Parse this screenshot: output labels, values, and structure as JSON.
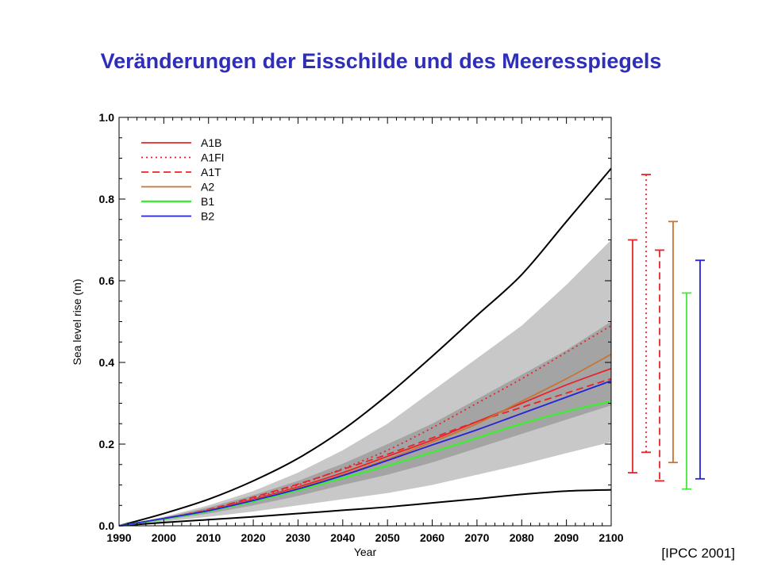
{
  "slide_title": "Veränderungen der Eisschilde und des Meeresspiegels",
  "source_note": "[IPCC 2001]",
  "colors": {
    "title": "#2e2eb8",
    "band_outer": "#c8c8c8",
    "band_inner": "#a4a4a4",
    "envelope": "#000000",
    "A1B": "#e8242b",
    "A1FI": "#e8242b",
    "A1T": "#e8242b",
    "A2": "#c87533",
    "B1": "#44e83a",
    "B2": "#2424d8"
  },
  "chart_data": {
    "type": "line",
    "xlabel": "Year",
    "ylabel": "Sea level rise (m)",
    "xlim": [
      1990,
      2100
    ],
    "ylim": [
      0.0,
      1.0
    ],
    "x_ticks": [
      "1990",
      "2000",
      "2010",
      "2020",
      "2030",
      "2040",
      "2050",
      "2060",
      "2070",
      "2080",
      "2090",
      "2100"
    ],
    "y_ticks": [
      "0.0",
      "0.2",
      "0.4",
      "0.6",
      "0.8",
      "1.0"
    ],
    "legend_position": "top-left",
    "x": [
      1990,
      2000,
      2010,
      2020,
      2030,
      2040,
      2050,
      2060,
      2070,
      2080,
      2090,
      2100
    ],
    "series": [
      {
        "name": "A1B",
        "style": "solid",
        "values": [
          0.0,
          0.018,
          0.038,
          0.065,
          0.095,
          0.13,
          0.17,
          0.21,
          0.255,
          0.3,
          0.345,
          0.385
        ]
      },
      {
        "name": "A1FI",
        "style": "dotted",
        "values": [
          0.0,
          0.018,
          0.04,
          0.068,
          0.1,
          0.14,
          0.185,
          0.24,
          0.3,
          0.36,
          0.425,
          0.49
        ]
      },
      {
        "name": "A1T",
        "style": "dashed",
        "values": [
          0.0,
          0.018,
          0.04,
          0.07,
          0.102,
          0.138,
          0.175,
          0.215,
          0.255,
          0.29,
          0.325,
          0.36
        ]
      },
      {
        "name": "A2",
        "style": "solid",
        "values": [
          0.0,
          0.018,
          0.038,
          0.063,
          0.092,
          0.125,
          0.163,
          0.205,
          0.25,
          0.305,
          0.36,
          0.42
        ]
      },
      {
        "name": "B1",
        "style": "solid",
        "values": [
          0.0,
          0.017,
          0.036,
          0.06,
          0.087,
          0.117,
          0.147,
          0.18,
          0.215,
          0.25,
          0.28,
          0.305
        ]
      },
      {
        "name": "B2",
        "style": "solid",
        "values": [
          0.0,
          0.018,
          0.037,
          0.062,
          0.09,
          0.123,
          0.16,
          0.198,
          0.235,
          0.275,
          0.315,
          0.355
        ]
      }
    ],
    "envelope_upper": [
      0.0,
      0.03,
      0.065,
      0.11,
      0.165,
      0.235,
      0.32,
      0.415,
      0.515,
      0.615,
      0.745,
      0.875
    ],
    "envelope_lower": [
      0.0,
      0.008,
      0.015,
      0.022,
      0.03,
      0.038,
      0.046,
      0.056,
      0.066,
      0.077,
      0.085,
      0.088
    ],
    "band_outer_upper": [
      0.0,
      0.022,
      0.05,
      0.085,
      0.13,
      0.185,
      0.25,
      0.33,
      0.41,
      0.49,
      0.59,
      0.7
    ],
    "band_outer_lower": [
      0.0,
      0.01,
      0.022,
      0.035,
      0.05,
      0.065,
      0.08,
      0.1,
      0.125,
      0.15,
      0.178,
      0.205
    ],
    "band_inner_upper": [
      0.0,
      0.02,
      0.045,
      0.075,
      0.11,
      0.152,
      0.2,
      0.25,
      0.31,
      0.37,
      0.43,
      0.5
    ],
    "band_inner_lower": [
      0.0,
      0.014,
      0.03,
      0.05,
      0.073,
      0.1,
      0.125,
      0.155,
      0.19,
      0.225,
      0.26,
      0.295
    ],
    "range_bars": [
      {
        "name": "A1B",
        "style": "solid",
        "low": 0.13,
        "high": 0.7
      },
      {
        "name": "A1FI",
        "style": "dotted",
        "low": 0.18,
        "high": 0.86
      },
      {
        "name": "A1T",
        "style": "dashed",
        "low": 0.11,
        "high": 0.675
      },
      {
        "name": "A2",
        "style": "solid",
        "low": 0.155,
        "high": 0.745
      },
      {
        "name": "B1",
        "style": "solid",
        "low": 0.09,
        "high": 0.57
      },
      {
        "name": "B2",
        "style": "solid",
        "low": 0.115,
        "high": 0.65
      }
    ]
  }
}
